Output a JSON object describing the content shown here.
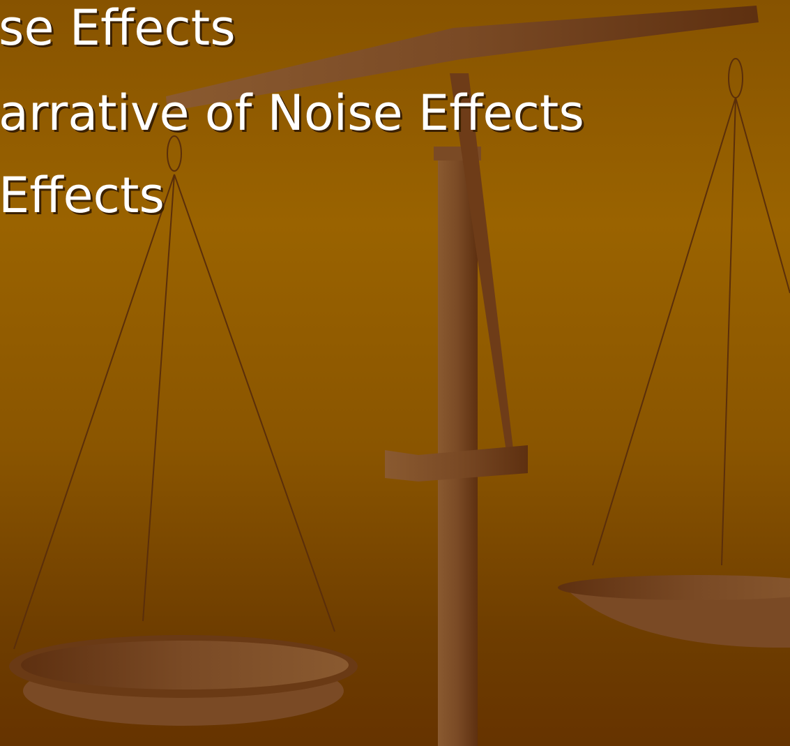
{
  "slide": {
    "lines": [
      "se Effects",
      "arrative of Noise Effects",
      "Effects"
    ]
  }
}
